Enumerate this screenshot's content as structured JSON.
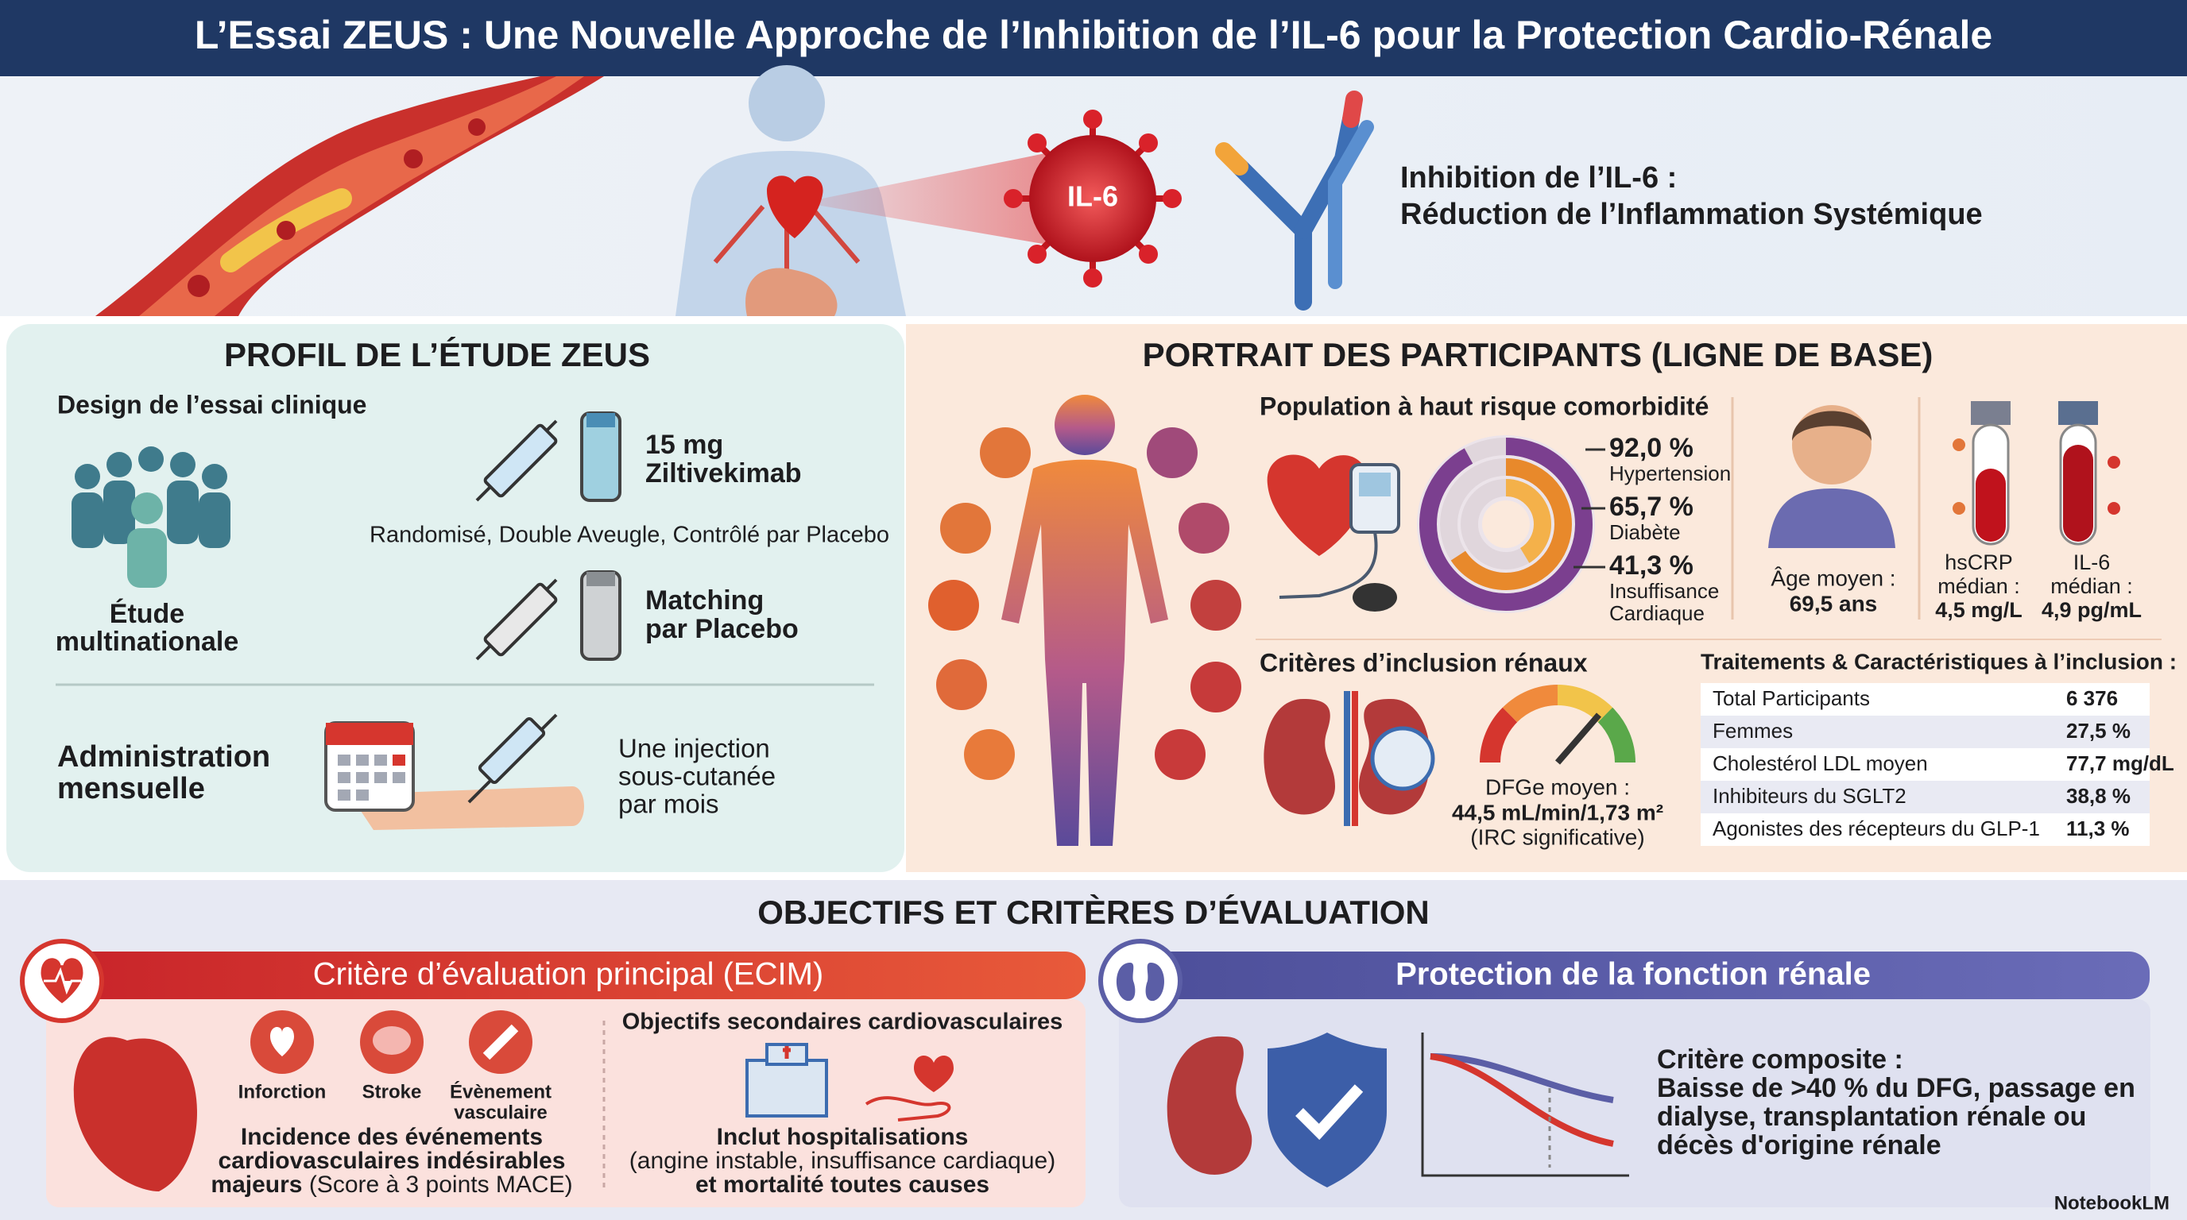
{
  "header": {
    "title": "L’Essai ZEUS : Une Nouvelle Approche de l’Inhibition de l’IL-6 pour la Protection Cardio-Rénale"
  },
  "hero": {
    "molecule": "IL-6",
    "caption": [
      "Inhibition de l’IL-6 :",
      "Réduction de l’Inflammation Systémique"
    ]
  },
  "study_profile": {
    "title": "PROFIL DE L’ÉTUDE ZEUS",
    "design_heading": "Design de l’essai clinique",
    "multinational": [
      "Étude",
      "multinationale"
    ],
    "drug": [
      "15 mg",
      "Ziltivekimab"
    ],
    "design": "Randomisé, Double Aveugle, Contrôlé par Placebo",
    "placebo": [
      "Matching",
      "par Placebo"
    ],
    "administration_heading": [
      "Administration",
      "mensuelle"
    ],
    "administration_text": [
      "Une injection",
      "sous-cutanée",
      "par mois"
    ]
  },
  "participants": {
    "title": "PORTRAIT DES PARTICIPANTS (LIGNE DE BASE)",
    "comorbidity_heading": "Population à haut risque comorbidité",
    "comorbidities": [
      {
        "value": "92,0 %",
        "label": [
          "Hypertension"
        ]
      },
      {
        "value": "65,7 %",
        "label": [
          "Diabète"
        ]
      },
      {
        "value": "41,3 %",
        "label": [
          "Insuffisance",
          "Cardiaque"
        ]
      }
    ],
    "age": {
      "label": "Âge moyen :",
      "value": "69,5 ans"
    },
    "biomarkers": [
      {
        "label": [
          "hsCRP",
          "médian :"
        ],
        "value": "4,5 mg/L"
      },
      {
        "label": [
          "IL-6",
          "médian :"
        ],
        "value": "4,9 pg/mL"
      }
    ],
    "renal_heading": "Critères d’inclusion rénaux",
    "egfr": {
      "label": "DFGe moyen :",
      "value": "44,5 mL/min/1,73 m²",
      "note": "(IRC significative)"
    },
    "table": {
      "title": "Traitements & Caractéristiques à l’inclusion :",
      "rows": [
        [
          "Total Participants",
          "6 376"
        ],
        [
          "Femmes",
          "27,5 %"
        ],
        [
          "Cholestérol LDL moyen",
          "77,7 mg/dL"
        ],
        [
          "Inhibiteurs du SGLT2",
          "38,8 %"
        ],
        [
          "Agonistes des récepteurs du GLP-1",
          "11,3 %"
        ]
      ]
    }
  },
  "objectives": {
    "title": "OBJECTIFS ET CRITÈRES D’ÉVALUATION",
    "primary": {
      "title": "Critère d’évaluation principal (ECIM)",
      "events": [
        [
          "Inforction"
        ],
        [
          "Stroke"
        ],
        [
          "Évènement",
          "vasculaire"
        ]
      ],
      "description": {
        "bold": [
          "Incidence des événements",
          "cardiovasculaires indésirables",
          "majeurs"
        ],
        "normal": "(Score à 3 points MACE)"
      }
    },
    "secondary": {
      "title": "Objectifs secondaires cardiovasculaires",
      "description": [
        "Inclut hospitalisations",
        "(angine instable, insuffisance cardiaque)",
        "et mortalité toutes causes"
      ]
    },
    "renal": {
      "title": "Protection de la fonction rénale",
      "heading": "Critère composite :",
      "description": [
        "Baisse de >40 % du DFG, passage en",
        "dialyse, transplantation rénale ou",
        "décès d'origine rénale"
      ]
    }
  },
  "footer": {
    "brand": "NotebookLM"
  }
}
